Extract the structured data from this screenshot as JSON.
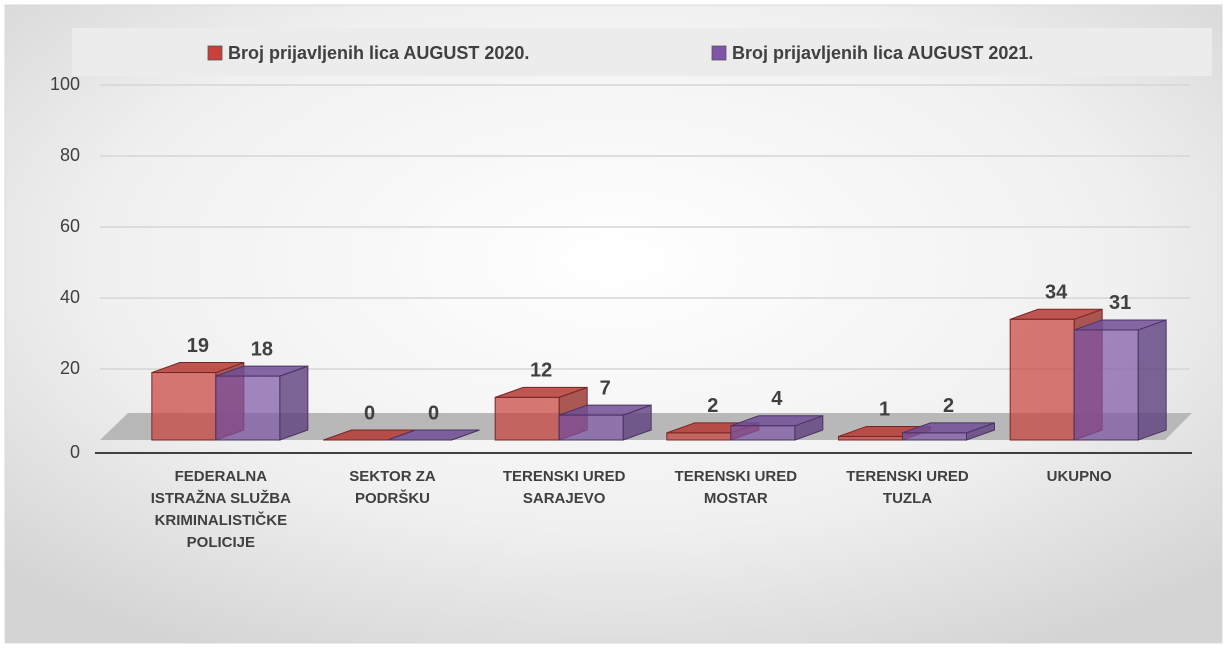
{
  "chart_data": {
    "type": "bar3d",
    "categories": [
      "FEDERALNA ISTRAŽNA SLUŽBA KRIMINALISTIČKE POLICIJE",
      "SEKTOR ZA PODRŠKU",
      "TERENSKI URED SARAJEVO",
      "TERENSKI URED MOSTAR",
      "TERENSKI URED TUZLA",
      "UKUPNO"
    ],
    "series": [
      {
        "name": "Broj prijavljenih lica AUGUST 2020.",
        "color": "#c9403b",
        "values": [
          19,
          0,
          12,
          2,
          1,
          34
        ]
      },
      {
        "name": "Broj prijavljenih lica AUGUST 2021.",
        "color": "#7e55a8",
        "values": [
          18,
          0,
          7,
          4,
          2,
          31
        ]
      }
    ],
    "ylim": [
      0,
      100
    ],
    "yticks": [
      0,
      20,
      40,
      60,
      80,
      100
    ],
    "grid": true,
    "legend": "top"
  }
}
